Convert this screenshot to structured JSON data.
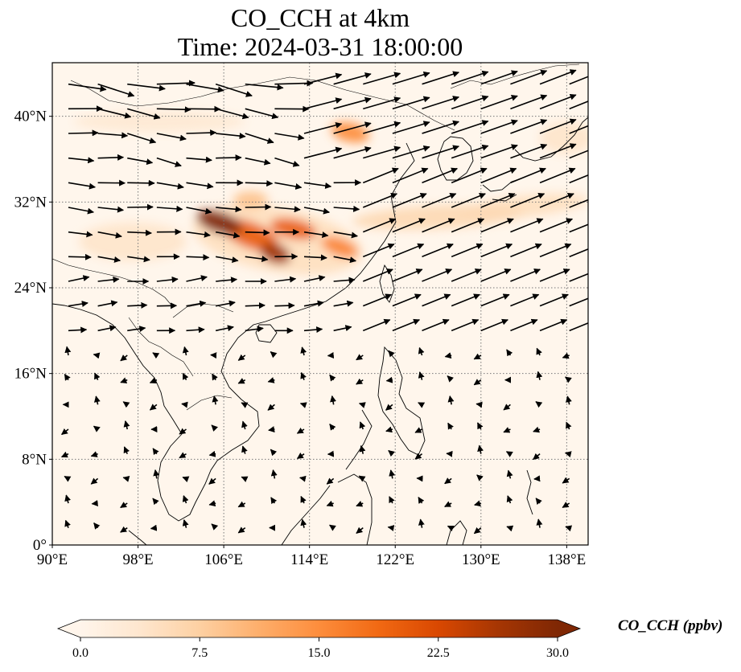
{
  "title": {
    "line1": "CO_CCH at 4km",
    "line2": "Time: 2024-03-31 18:00:00"
  },
  "map": {
    "extent": {
      "lon": [
        90,
        140
      ],
      "lat": [
        0,
        45
      ]
    },
    "gridlines": {
      "lon": [
        98,
        106,
        114,
        122,
        130,
        138
      ],
      "lat": [
        8,
        16,
        24,
        32,
        40
      ]
    },
    "lat_ticks": [
      {
        "value": 0,
        "label": "0°"
      },
      {
        "value": 8,
        "label": "8°N"
      },
      {
        "value": 16,
        "label": "16°N"
      },
      {
        "value": 24,
        "label": "24°N"
      },
      {
        "value": 32,
        "label": "32°N"
      },
      {
        "value": 40,
        "label": "40°N"
      }
    ],
    "lon_ticks": [
      {
        "value": 90,
        "label": "90°E"
      },
      {
        "value": 98,
        "label": "98°E"
      },
      {
        "value": 106,
        "label": "106°E"
      },
      {
        "value": 114,
        "label": "114°E"
      },
      {
        "value": 122,
        "label": "122°E"
      },
      {
        "value": 130,
        "label": "130°E"
      },
      {
        "value": 138,
        "label": "138°E"
      }
    ],
    "plumes": [
      {
        "lon": 105.6,
        "lat": 30.1,
        "rlon": 2.2,
        "rlat": 1.0,
        "rot": 18,
        "value": 30
      },
      {
        "lon": 108.5,
        "lat": 28.9,
        "rlon": 2.8,
        "rlat": 1.2,
        "rot": 22,
        "value": 20
      },
      {
        "lon": 110.8,
        "lat": 27.2,
        "rlon": 1.5,
        "rlat": 0.9,
        "rot": 20,
        "value": 27
      },
      {
        "lon": 112.5,
        "lat": 29.5,
        "rlon": 2.2,
        "rlat": 0.9,
        "rot": 12,
        "value": 20
      },
      {
        "lon": 116.8,
        "lat": 27.8,
        "rlon": 1.8,
        "rlat": 0.8,
        "rot": 20,
        "value": 16
      },
      {
        "lon": 108.5,
        "lat": 32.2,
        "rlon": 1.6,
        "rlat": 0.8,
        "rot": 0,
        "value": 9
      },
      {
        "lon": 126.0,
        "lat": 30.6,
        "rlon": 8.0,
        "rlat": 1.1,
        "rot": -3,
        "value": 6
      },
      {
        "lon": 134.0,
        "lat": 31.6,
        "rlon": 6.0,
        "rlat": 1.0,
        "rot": -6,
        "value": 5
      },
      {
        "lon": 117.8,
        "lat": 38.5,
        "rlon": 1.8,
        "rlat": 0.9,
        "rot": 12,
        "value": 15
      },
      {
        "lon": 97.5,
        "lat": 28.3,
        "rlon": 5.0,
        "rlat": 1.8,
        "rot": 0,
        "value": 4
      },
      {
        "lon": 100.0,
        "lat": 39.5,
        "rlon": 8.0,
        "rlat": 1.0,
        "rot": 0,
        "value": 3
      },
      {
        "lon": 111.0,
        "lat": 28.5,
        "rlon": 8.0,
        "rlat": 3.0,
        "rot": 10,
        "value": 5
      },
      {
        "lon": 138.0,
        "lat": 38.0,
        "rlon": 2.5,
        "rlat": 1.5,
        "rot": 0,
        "value": 4
      }
    ]
  },
  "colorbar": {
    "vmin": 0.0,
    "vmax": 30.0,
    "ticks": [
      "0.0",
      "7.5",
      "15.0",
      "22.5",
      "30.0"
    ],
    "label": "CO_CCH (ppbv)",
    "colors": [
      "#fff5eb",
      "#fee6ce",
      "#fdd0a2",
      "#fdae6b",
      "#fd8d3c",
      "#f16913",
      "#d94801",
      "#a63603",
      "#7f2704"
    ]
  }
}
